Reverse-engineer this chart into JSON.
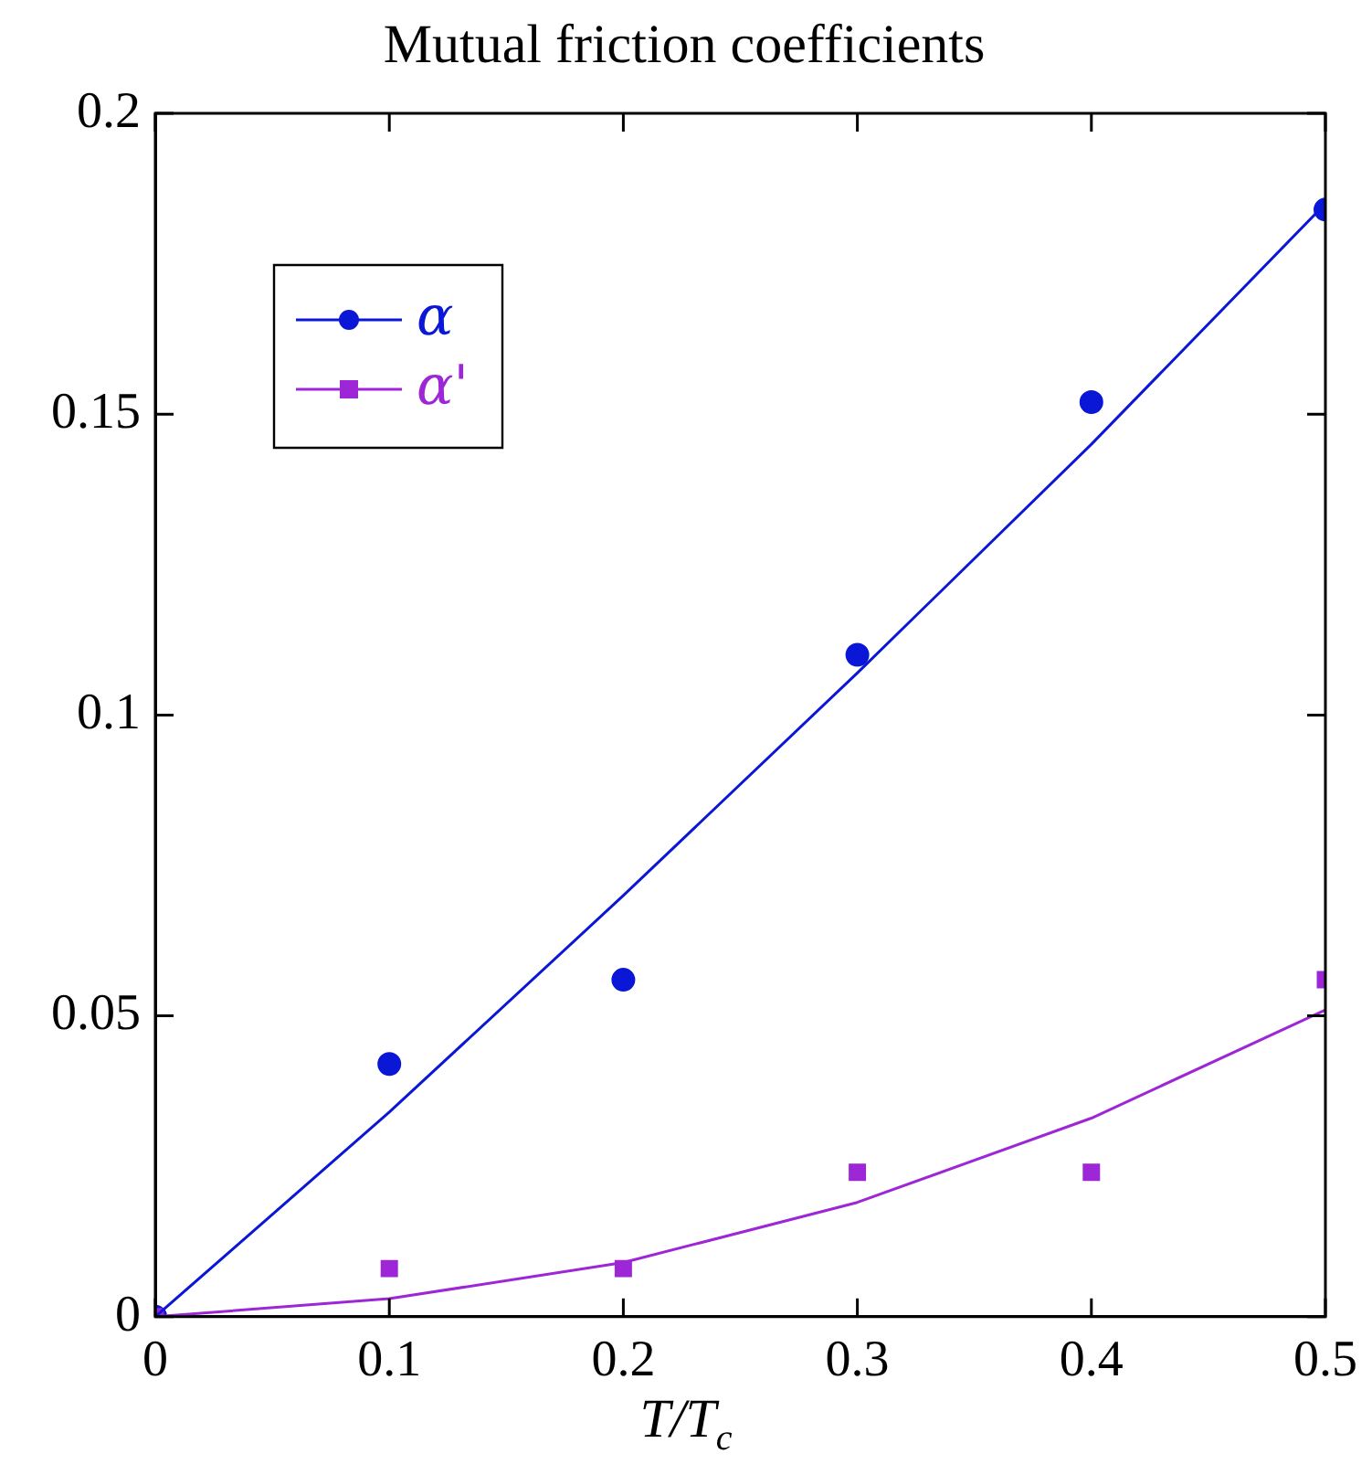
{
  "chart_data": {
    "type": "scatter",
    "title": "Mutual friction coefficients",
    "xlabel": "T/T$_{c}$",
    "xlim": [
      0,
      0.5
    ],
    "xticks": [
      0,
      0.1,
      0.2,
      0.3,
      0.4,
      0.5
    ],
    "ylim": [
      0,
      0.2
    ],
    "yticks": [
      0,
      0.05,
      0.1,
      0.15,
      0.2
    ],
    "grid": false,
    "legend": "top left",
    "series": [
      {
        "name": "α",
        "marker": "circle",
        "color": "#0b17d6",
        "x": [
          0,
          0.1,
          0.2,
          0.3,
          0.4,
          0.5
        ],
        "values": [
          0,
          0.042,
          0.056,
          0.11,
          0.152,
          0.184
        ]
      },
      {
        "name": "α'",
        "marker": "square",
        "color": "#9d27d6",
        "x": [
          0,
          0.1,
          0.2,
          0.3,
          0.4,
          0.5
        ],
        "values": [
          0,
          0.008,
          0.008,
          0.024,
          0.024,
          0.056
        ]
      },
      {
        "type": "line",
        "marker": "none",
        "color": "#0b17d6",
        "x": [
          0,
          0.1,
          0.2,
          0.3,
          0.4,
          0.5
        ],
        "values": [
          0,
          0.034,
          0.07,
          0.107,
          0.145,
          0.185
        ]
      },
      {
        "type": "line",
        "marker": "none",
        "color": "#9d27d6",
        "x": [
          0,
          0.1,
          0.2,
          0.3,
          0.4,
          0.5
        ],
        "values": [
          0,
          0.003,
          0.009,
          0.019,
          0.033,
          0.051
        ]
      }
    ]
  }
}
